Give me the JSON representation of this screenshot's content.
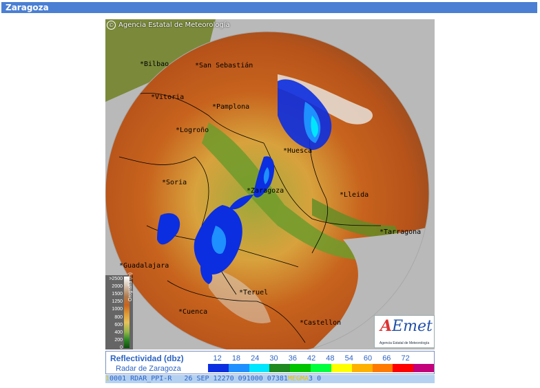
{
  "header": {
    "title": "Zaragoza"
  },
  "map": {
    "agency_text": "Agencia Estatal de Meteorología",
    "copyright_symbol": "©",
    "cities": [
      {
        "name": "Bilbao",
        "lx": 50,
        "ly": 60
      },
      {
        "name": "San Sebastián",
        "lx": 130,
        "ly": 62
      },
      {
        "name": "Vitoria",
        "lx": 66,
        "ly": 108
      },
      {
        "name": "Pamplona",
        "lx": 155,
        "ly": 122
      },
      {
        "name": "Logroño",
        "lx": 102,
        "ly": 156
      },
      {
        "name": "Huesca",
        "lx": 258,
        "ly": 186
      },
      {
        "name": "Soria",
        "lx": 82,
        "ly": 232
      },
      {
        "name": "Zaragoza",
        "lx": 205,
        "ly": 244
      },
      {
        "name": "Lleida",
        "lx": 340,
        "ly": 250
      },
      {
        "name": "Tarragona",
        "lx": 398,
        "ly": 304
      },
      {
        "name": "Guadalajara",
        "lx": 20,
        "ly": 353
      },
      {
        "name": "Teruel",
        "lx": 194,
        "ly": 392
      },
      {
        "name": "Cuenca",
        "lx": 106,
        "ly": 420
      },
      {
        "name": "Castellon",
        "lx": 282,
        "ly": 436
      }
    ],
    "orography": {
      "unit_label": "Orografía (m)",
      "levels": [
        ">2500",
        "2000",
        "1500",
        "1250",
        "1000",
        "800",
        "600",
        "400",
        "200",
        "0"
      ]
    },
    "logo": {
      "mark_a": "A",
      "mark_rest": "Emet",
      "subtitle": "Agencia Estatal de Meteorología"
    }
  },
  "legend": {
    "title": "Reflectividad (dbz)",
    "subtitle": "Radar de Zaragoza",
    "values": [
      "12",
      "18",
      "24",
      "30",
      "36",
      "42",
      "48",
      "54",
      "60",
      "66",
      "72"
    ],
    "colors": [
      "#0b2ee0",
      "#1e90ff",
      "#00e6ff",
      "#1f8a1f",
      "#00c400",
      "#00ff3c",
      "#ffff00",
      "#ffb100",
      "#ff7a00",
      "#ff0000",
      "#c4007a"
    ]
  },
  "status_bar": {
    "marker": "1",
    "text": "0001 RDAR_PPI-R   26 SEP 12270 091000 07381",
    "overlay": "MEGMA",
    "tail": "3 0"
  }
}
